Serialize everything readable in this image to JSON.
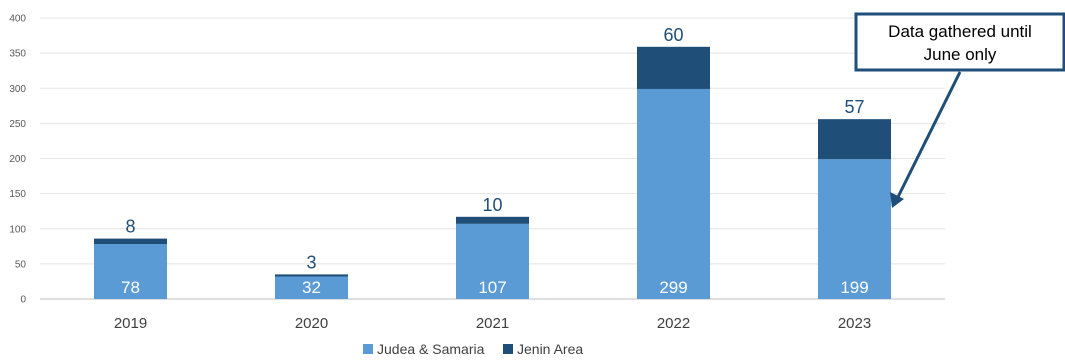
{
  "chart_data": {
    "type": "bar",
    "stacked": true,
    "categories": [
      "2019",
      "2020",
      "2021",
      "2022",
      "2023"
    ],
    "series": [
      {
        "name": "Judea & Samaria",
        "values": [
          78,
          32,
          107,
          299,
          199
        ],
        "color": "#5b9bd5"
      },
      {
        "name": "Jenin Area",
        "values": [
          8,
          3,
          10,
          60,
          57
        ],
        "color": "#1f4e79"
      }
    ],
    "ylim": [
      0,
      400
    ],
    "yticks": [
      0,
      50,
      100,
      150,
      200,
      250,
      300,
      350,
      400
    ],
    "grid": true,
    "legend_position": "bottom-center",
    "annotation": {
      "lines": [
        "Data gathered until",
        "June only"
      ],
      "target_category": "2023"
    }
  }
}
